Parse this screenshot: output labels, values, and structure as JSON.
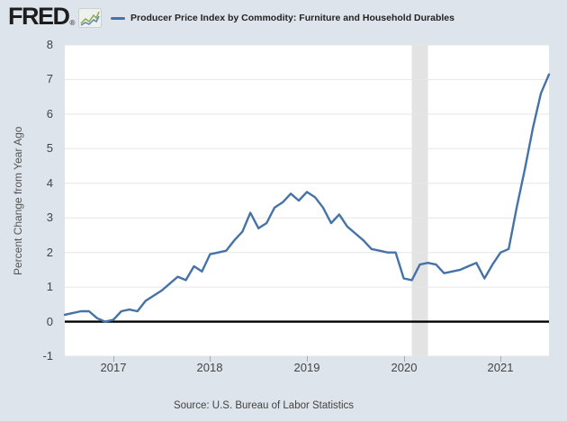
{
  "header": {
    "logo": "FRED",
    "registered_mark": "®",
    "legend": {
      "marker_color": "#4572a7",
      "label": "Producer Price Index by Commodity: Furniture and Household Durables"
    }
  },
  "chart_data": {
    "type": "line",
    "title": "Producer Price Index by Commodity: Furniture and Household Durables",
    "ylabel": "Percent Change from Year Ago",
    "ylim": [
      -1,
      8
    ],
    "y_ticks": [
      8,
      7,
      6,
      5,
      4,
      3,
      2,
      1,
      0,
      -1
    ],
    "x_tick_years": [
      "2017",
      "2018",
      "2019",
      "2020",
      "2021"
    ],
    "frequency": "monthly",
    "grid": true,
    "zero_line": true,
    "legend_position": "top",
    "recession_band": {
      "start": "2020-02",
      "end": "2020-04"
    },
    "x": [
      "2016-07",
      "2016-08",
      "2016-09",
      "2016-10",
      "2016-11",
      "2016-12",
      "2017-01",
      "2017-02",
      "2017-03",
      "2017-04",
      "2017-05",
      "2017-06",
      "2017-07",
      "2017-08",
      "2017-09",
      "2017-10",
      "2017-11",
      "2017-12",
      "2018-01",
      "2018-02",
      "2018-03",
      "2018-04",
      "2018-05",
      "2018-06",
      "2018-07",
      "2018-08",
      "2018-09",
      "2018-10",
      "2018-11",
      "2018-12",
      "2019-01",
      "2019-02",
      "2019-03",
      "2019-04",
      "2019-05",
      "2019-06",
      "2019-07",
      "2019-08",
      "2019-09",
      "2019-10",
      "2019-11",
      "2019-12",
      "2020-01",
      "2020-02",
      "2020-03",
      "2020-04",
      "2020-05",
      "2020-06",
      "2020-07",
      "2020-08",
      "2020-09",
      "2020-10",
      "2020-11",
      "2020-12",
      "2021-01",
      "2021-02",
      "2021-03",
      "2021-04",
      "2021-05",
      "2021-06",
      "2021-07"
    ],
    "series": [
      {
        "name": "Producer Price Index by Commodity: Furniture and Household Durables",
        "color": "#4572a7",
        "values": [
          0.2,
          0.25,
          0.3,
          0.3,
          0.1,
          0.0,
          0.05,
          0.3,
          0.35,
          0.3,
          0.6,
          0.75,
          0.9,
          1.1,
          1.3,
          1.2,
          1.6,
          1.45,
          1.95,
          2.0,
          2.05,
          2.35,
          2.6,
          3.15,
          2.7,
          2.85,
          3.3,
          3.45,
          3.7,
          3.5,
          3.75,
          3.6,
          3.3,
          2.85,
          3.1,
          2.75,
          2.55,
          2.35,
          2.1,
          2.05,
          2.0,
          2.0,
          1.25,
          1.2,
          1.65,
          1.7,
          1.65,
          1.4,
          1.45,
          1.5,
          1.6,
          1.7,
          1.25,
          1.65,
          2.0,
          2.1,
          3.3,
          4.4,
          5.6,
          6.6,
          7.15
        ]
      }
    ]
  },
  "footer": {
    "source": "Source: U.S. Bureau of Labor Statistics"
  },
  "colors": {
    "page_background": "#dee4eb",
    "plot_background": "#ffffff",
    "gridline": "#e6e6e6",
    "recession_band": "#e3e3e3",
    "zero_line": "#000000",
    "line": "#4572a7",
    "tick_text": "#444444"
  }
}
